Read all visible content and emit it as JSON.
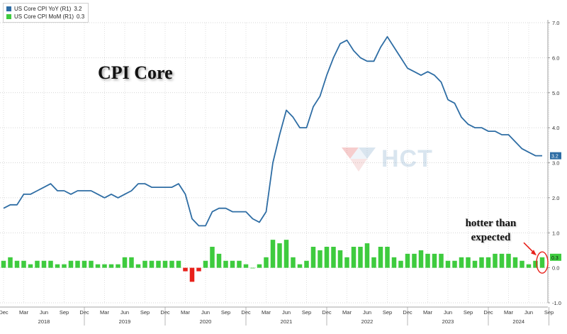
{
  "chart_data": {
    "type": "line",
    "title": "CPI Core",
    "x": [
      "2017-12",
      "2018-01",
      "2018-02",
      "2018-03",
      "2018-04",
      "2018-05",
      "2018-06",
      "2018-07",
      "2018-08",
      "2018-09",
      "2018-10",
      "2018-11",
      "2018-12",
      "2019-01",
      "2019-02",
      "2019-03",
      "2019-04",
      "2019-05",
      "2019-06",
      "2019-07",
      "2019-08",
      "2019-09",
      "2019-10",
      "2019-11",
      "2019-12",
      "2020-01",
      "2020-02",
      "2020-03",
      "2020-04",
      "2020-05",
      "2020-06",
      "2020-07",
      "2020-08",
      "2020-09",
      "2020-10",
      "2020-11",
      "2020-12",
      "2021-01",
      "2021-02",
      "2021-03",
      "2021-04",
      "2021-05",
      "2021-06",
      "2021-07",
      "2021-08",
      "2021-09",
      "2021-10",
      "2021-11",
      "2021-12",
      "2022-01",
      "2022-02",
      "2022-03",
      "2022-04",
      "2022-05",
      "2022-06",
      "2022-07",
      "2022-08",
      "2022-09",
      "2022-10",
      "2022-11",
      "2022-12",
      "2023-01",
      "2023-02",
      "2023-03",
      "2023-04",
      "2023-05",
      "2023-06",
      "2023-07",
      "2023-08",
      "2023-09",
      "2023-10",
      "2023-11",
      "2023-12",
      "2024-01",
      "2024-02",
      "2024-03",
      "2024-04",
      "2024-05",
      "2024-06",
      "2024-07",
      "2024-08"
    ],
    "series": [
      {
        "name": "US Core CPI YoY (R1)",
        "last_value": "3.2",
        "color": "#2e6da4",
        "render": "line",
        "values": [
          1.7,
          1.8,
          1.8,
          2.1,
          2.1,
          2.2,
          2.3,
          2.4,
          2.2,
          2.2,
          2.1,
          2.2,
          2.2,
          2.2,
          2.1,
          2.0,
          2.1,
          2.0,
          2.1,
          2.2,
          2.4,
          2.4,
          2.3,
          2.3,
          2.3,
          2.3,
          2.4,
          2.1,
          1.4,
          1.2,
          1.2,
          1.6,
          1.7,
          1.7,
          1.6,
          1.6,
          1.6,
          1.4,
          1.3,
          1.6,
          3.0,
          3.8,
          4.5,
          4.3,
          4.0,
          4.0,
          4.6,
          4.9,
          5.5,
          6.0,
          6.4,
          6.5,
          6.2,
          6.0,
          5.9,
          5.9,
          6.3,
          6.6,
          6.3,
          6.0,
          5.7,
          5.6,
          5.5,
          5.6,
          5.5,
          5.3,
          4.8,
          4.7,
          4.3,
          4.1,
          4.0,
          4.0,
          3.9,
          3.9,
          3.8,
          3.8,
          3.6,
          3.4,
          3.3,
          3.2,
          3.2
        ]
      },
      {
        "name": "US Core CPI MoM (R1)",
        "last_value": "0.3",
        "color": "#3ecb3e",
        "negative_color": "#e8201a",
        "render": "bar",
        "values": [
          0.2,
          0.3,
          0.2,
          0.2,
          0.1,
          0.2,
          0.2,
          0.2,
          0.1,
          0.1,
          0.2,
          0.2,
          0.2,
          0.2,
          0.1,
          0.1,
          0.1,
          0.1,
          0.3,
          0.3,
          0.1,
          0.2,
          0.2,
          0.2,
          0.2,
          0.2,
          0.2,
          -0.1,
          -0.4,
          -0.1,
          0.2,
          0.6,
          0.4,
          0.2,
          0.2,
          0.2,
          0.1,
          0.0,
          0.1,
          0.3,
          0.8,
          0.7,
          0.8,
          0.3,
          0.1,
          0.2,
          0.6,
          0.5,
          0.6,
          0.6,
          0.5,
          0.3,
          0.6,
          0.6,
          0.7,
          0.3,
          0.6,
          0.6,
          0.3,
          0.2,
          0.4,
          0.4,
          0.5,
          0.4,
          0.4,
          0.4,
          0.2,
          0.2,
          0.3,
          0.3,
          0.2,
          0.3,
          0.3,
          0.4,
          0.4,
          0.4,
          0.3,
          0.2,
          0.1,
          0.2,
          0.3
        ]
      }
    ],
    "ylim": [
      -1.0,
      7.0
    ],
    "y_ticks": [
      "-1.0",
      "0.0",
      "1.0",
      "2.0",
      "3.0",
      "4.0",
      "5.0",
      "6.0",
      "7.0"
    ],
    "y_axis_side": "right",
    "grid": true,
    "legend_position": "top-left",
    "x_tick_labels": [
      {
        "date": "2017-12",
        "label": "Dec"
      },
      {
        "date": "2018-03",
        "label": "Mar"
      },
      {
        "date": "2018-06",
        "label": "Jun"
      },
      {
        "date": "2018-09",
        "label": "Sep"
      },
      {
        "date": "2018-12",
        "label": "Dec"
      },
      {
        "date": "2019-03",
        "label": "Mar"
      },
      {
        "date": "2019-06",
        "label": "Jun"
      },
      {
        "date": "2019-09",
        "label": "Sep"
      },
      {
        "date": "2019-12",
        "label": "Dec"
      },
      {
        "date": "2020-03",
        "label": "Mar"
      },
      {
        "date": "2020-06",
        "label": "Jun"
      },
      {
        "date": "2020-09",
        "label": "Sep"
      },
      {
        "date": "2020-12",
        "label": "Dec"
      },
      {
        "date": "2021-03",
        "label": "Mar"
      },
      {
        "date": "2021-06",
        "label": "Jun"
      },
      {
        "date": "2021-09",
        "label": "Sep"
      },
      {
        "date": "2021-12",
        "label": "Dec"
      },
      {
        "date": "2022-03",
        "label": "Mar"
      },
      {
        "date": "2022-06",
        "label": "Jun"
      },
      {
        "date": "2022-09",
        "label": "Sep"
      },
      {
        "date": "2022-12",
        "label": "Dec"
      },
      {
        "date": "2023-03",
        "label": "Mar"
      },
      {
        "date": "2023-06",
        "label": "Jun"
      },
      {
        "date": "2023-09",
        "label": "Sep"
      },
      {
        "date": "2023-12",
        "label": "Dec"
      },
      {
        "date": "2024-03",
        "label": "Mar"
      },
      {
        "date": "2024-06",
        "label": "Jun"
      },
      {
        "date": "2024-09",
        "label": "Sep"
      }
    ],
    "year_labels": [
      {
        "year": "2018",
        "from": "2017-12",
        "to": "2018-12"
      },
      {
        "year": "2019",
        "from": "2018-12",
        "to": "2019-12"
      },
      {
        "year": "2020",
        "from": "2019-12",
        "to": "2020-12"
      },
      {
        "year": "2021",
        "from": "2020-12",
        "to": "2021-12"
      },
      {
        "year": "2022",
        "from": "2021-12",
        "to": "2022-12"
      },
      {
        "year": "2023",
        "from": "2022-12",
        "to": "2023-12"
      },
      {
        "year": "2024",
        "from": "2023-12",
        "to": "2024-09"
      }
    ],
    "annotations": [
      {
        "text": "hotter than\nexpected",
        "points_to": "2024-08",
        "series": "US Core CPI MoM (R1)"
      }
    ]
  },
  "legend": {
    "items": [
      {
        "label": "US Core CPI YoY (R1)",
        "value": "3.2",
        "color": "#2e6da4"
      },
      {
        "label": "US Core CPI MoM (R1)",
        "value": "0.3",
        "color": "#3ecb3e"
      }
    ]
  },
  "title": "CPI Core",
  "annotation": {
    "line1": "hotter than",
    "line2": "expected"
  },
  "watermark": {
    "text": "HCT",
    "color": "#7aa3c8"
  }
}
